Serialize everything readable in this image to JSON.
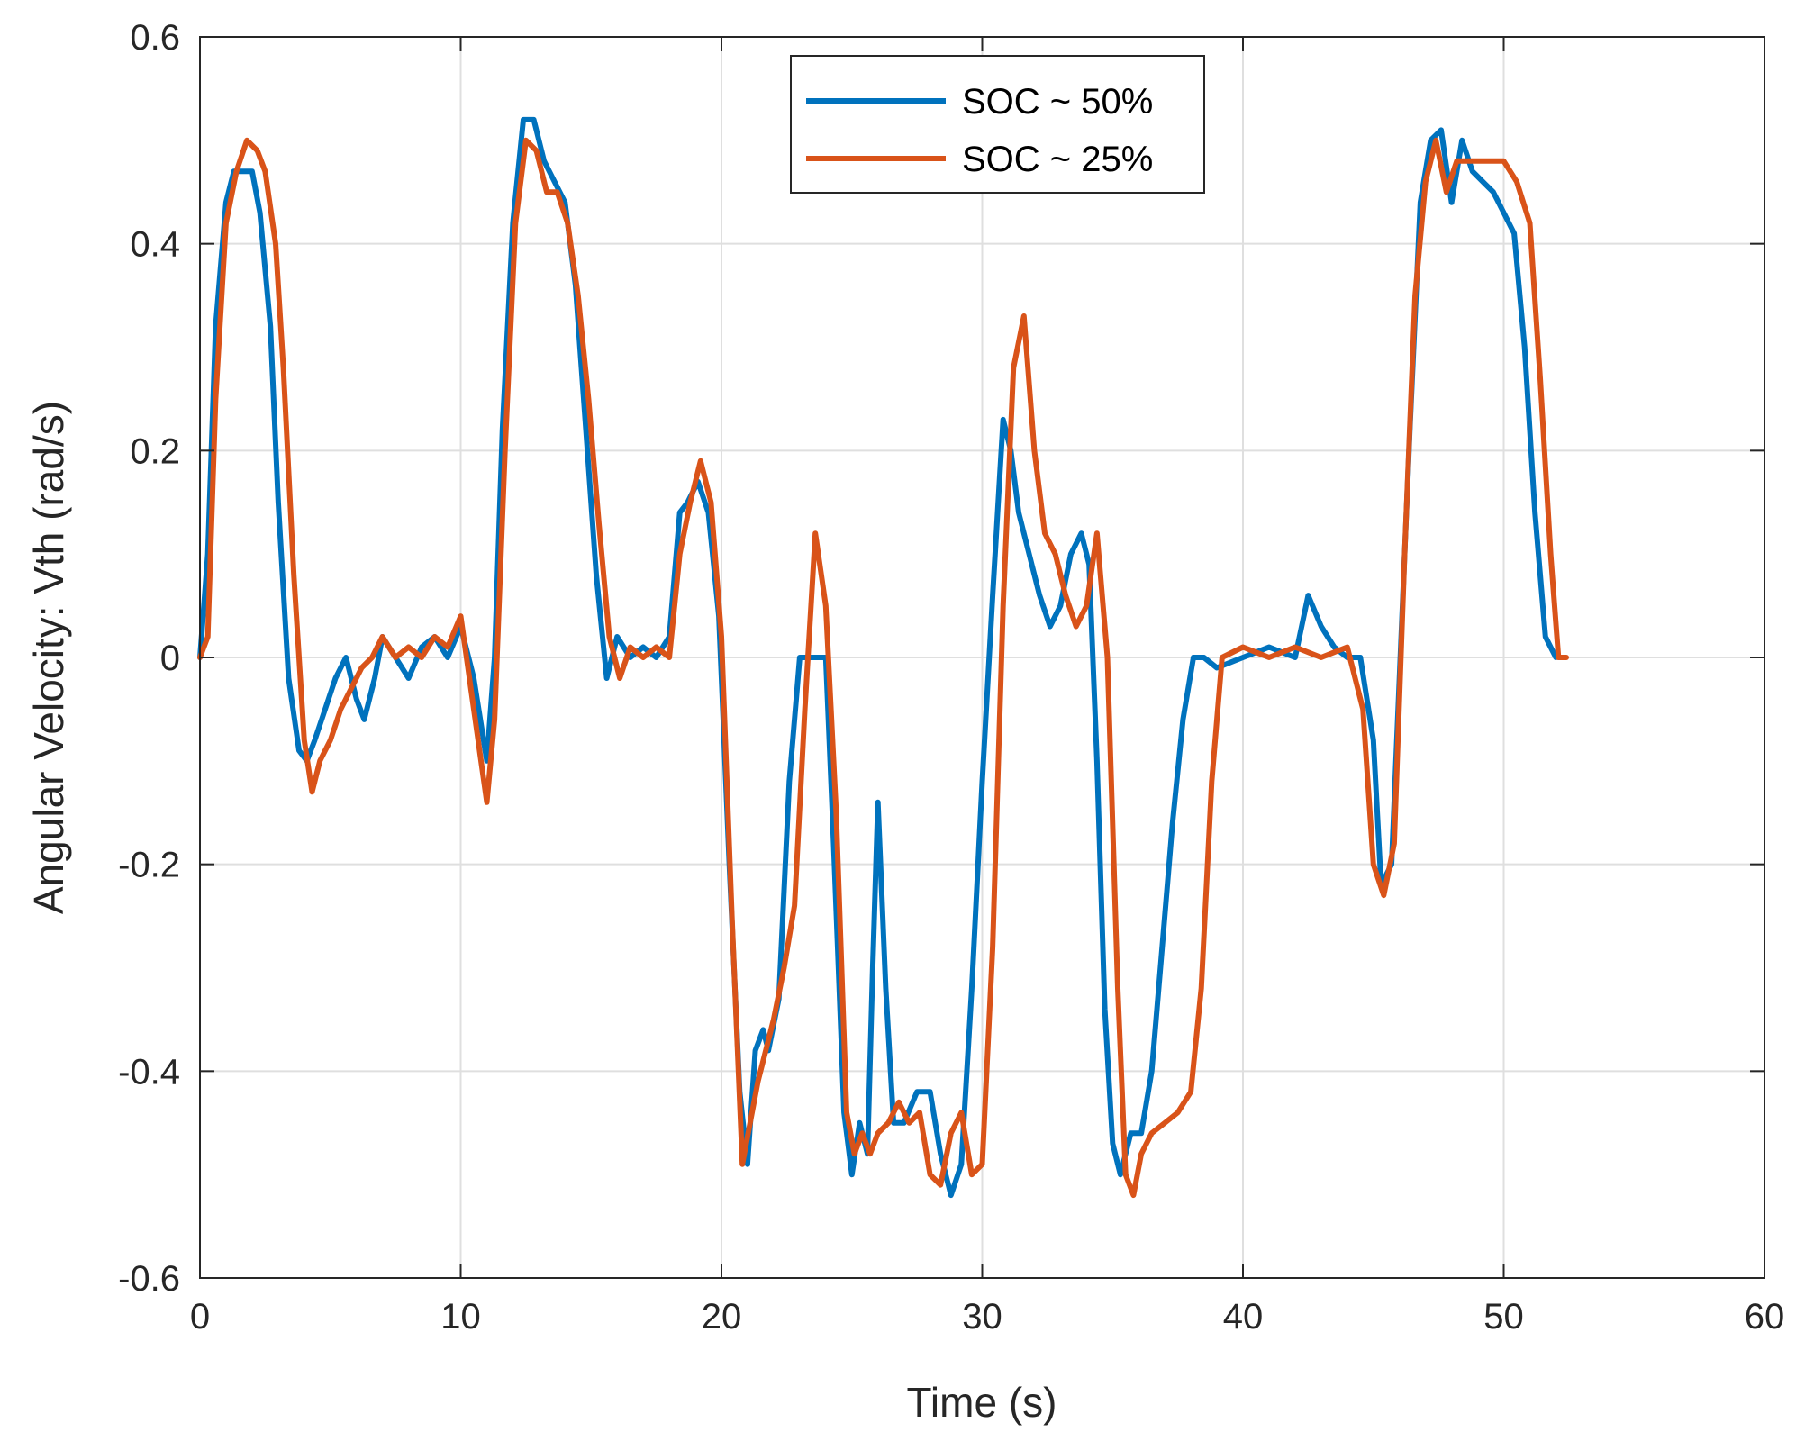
{
  "chart_data": {
    "type": "line",
    "title": "",
    "xlabel": "Time (s)",
    "ylabel": "Angular Velocity: Vth (rad/s)",
    "xlim": [
      0,
      60
    ],
    "ylim": [
      -0.6,
      0.6
    ],
    "xticks": [
      0,
      10,
      20,
      30,
      40,
      50,
      60
    ],
    "yticks": [
      -0.6,
      -0.4,
      -0.2,
      0,
      0.2,
      0.4,
      0.6
    ],
    "xtick_labels": [
      "0",
      "10",
      "20",
      "30",
      "40",
      "50",
      "60"
    ],
    "ytick_labels": [
      "-0.6",
      "-0.4",
      "-0.2",
      "0",
      "0.2",
      "0.4",
      "0.6"
    ],
    "grid": true,
    "legend_position": "top-center",
    "series": [
      {
        "name": "SOC ~ 50%",
        "color": "#0072BD",
        "x": [
          0,
          0.3,
          0.6,
          1.0,
          1.3,
          1.7,
          2.0,
          2.3,
          2.7,
          3.0,
          3.4,
          3.8,
          4.1,
          4.4,
          4.8,
          5.2,
          5.6,
          6.0,
          6.3,
          6.7,
          7.0,
          7.5,
          8.0,
          8.5,
          9.0,
          9.5,
          10.0,
          10.5,
          11.0,
          11.3,
          11.6,
          12.0,
          12.4,
          12.8,
          13.2,
          13.6,
          14.0,
          14.4,
          14.8,
          15.2,
          15.6,
          16.0,
          16.5,
          17.0,
          17.5,
          18.0,
          18.4,
          18.7,
          19.1,
          19.5,
          19.9,
          20.3,
          20.7,
          21.0,
          21.3,
          21.6,
          21.8,
          22.2,
          22.6,
          23.0,
          23.5,
          24.0,
          24.3,
          24.7,
          25.0,
          25.3,
          25.6,
          25.8,
          26.0,
          26.3,
          26.6,
          27.0,
          27.5,
          28.0,
          28.4,
          28.8,
          29.2,
          29.6,
          30.0,
          30.4,
          30.8,
          31.1,
          31.4,
          31.8,
          32.2,
          32.6,
          33.0,
          33.4,
          33.8,
          34.1,
          34.4,
          34.7,
          35.0,
          35.3,
          35.7,
          36.1,
          36.5,
          36.9,
          37.3,
          37.7,
          38.1,
          38.5,
          39.0,
          40.0,
          41.0,
          42.0,
          42.5,
          43.0,
          43.5,
          44.0,
          44.5,
          45.0,
          45.3,
          45.7,
          46.0,
          46.4,
          46.8,
          47.2,
          47.6,
          48.0,
          48.4,
          48.8,
          49.2,
          49.6,
          50.0,
          50.4,
          50.8,
          51.2,
          51.6,
          52.0
        ],
        "values": [
          0.0,
          0.1,
          0.32,
          0.44,
          0.47,
          0.47,
          0.47,
          0.43,
          0.32,
          0.15,
          -0.02,
          -0.09,
          -0.1,
          -0.08,
          -0.05,
          -0.02,
          0.0,
          -0.04,
          -0.06,
          -0.02,
          0.02,
          0.0,
          -0.02,
          0.01,
          0.02,
          0.0,
          0.03,
          -0.02,
          -0.1,
          0.0,
          0.22,
          0.42,
          0.52,
          0.52,
          0.48,
          0.46,
          0.44,
          0.36,
          0.22,
          0.08,
          -0.02,
          0.02,
          0.0,
          0.01,
          0.0,
          0.02,
          0.14,
          0.15,
          0.17,
          0.14,
          0.04,
          -0.2,
          -0.42,
          -0.49,
          -0.38,
          -0.36,
          -0.38,
          -0.33,
          -0.12,
          0.0,
          0.0,
          0.0,
          -0.18,
          -0.44,
          -0.5,
          -0.45,
          -0.48,
          -0.3,
          -0.14,
          -0.32,
          -0.45,
          -0.45,
          -0.42,
          -0.42,
          -0.48,
          -0.52,
          -0.49,
          -0.32,
          -0.12,
          0.06,
          0.23,
          0.2,
          0.14,
          0.1,
          0.06,
          0.03,
          0.05,
          0.1,
          0.12,
          0.09,
          -0.1,
          -0.34,
          -0.47,
          -0.5,
          -0.46,
          -0.46,
          -0.4,
          -0.28,
          -0.16,
          -0.06,
          0.0,
          0.0,
          -0.01,
          0.0,
          0.01,
          0.0,
          0.06,
          0.03,
          0.01,
          0.0,
          0.0,
          -0.08,
          -0.22,
          -0.2,
          -0.02,
          0.22,
          0.44,
          0.5,
          0.51,
          0.44,
          0.5,
          0.47,
          0.46,
          0.45,
          0.43,
          0.41,
          0.3,
          0.14,
          0.02,
          0.0
        ],
        "description_hidden": ""
      },
      {
        "name": "SOC ~ 25%",
        "color": "#D95319",
        "x": [
          0,
          0.3,
          0.6,
          1.0,
          1.4,
          1.8,
          2.2,
          2.5,
          2.9,
          3.2,
          3.6,
          4.0,
          4.3,
          4.6,
          5.0,
          5.4,
          5.8,
          6.2,
          6.6,
          7.0,
          7.5,
          8.0,
          8.5,
          9.0,
          9.5,
          10.0,
          10.5,
          11.0,
          11.3,
          11.7,
          12.1,
          12.5,
          12.9,
          13.3,
          13.7,
          14.1,
          14.5,
          14.9,
          15.3,
          15.7,
          16.1,
          16.5,
          17.0,
          17.5,
          18.0,
          18.4,
          18.8,
          19.2,
          19.6,
          20.0,
          20.4,
          20.8,
          21.1,
          21.4,
          21.7,
          22.0,
          22.4,
          22.8,
          23.2,
          23.6,
          24.0,
          24.4,
          24.8,
          25.1,
          25.4,
          25.7,
          26.0,
          26.4,
          26.8,
          27.2,
          27.6,
          28.0,
          28.4,
          28.8,
          29.2,
          29.6,
          30.0,
          30.4,
          30.8,
          31.2,
          31.6,
          32.0,
          32.4,
          32.8,
          33.2,
          33.6,
          34.0,
          34.4,
          34.8,
          35.2,
          35.5,
          35.8,
          36.1,
          36.5,
          37.0,
          37.5,
          38.0,
          38.4,
          38.8,
          39.2,
          40.0,
          41.0,
          42.0,
          43.0,
          44.0,
          44.6,
          45.0,
          45.4,
          45.8,
          46.2,
          46.6,
          47.0,
          47.4,
          47.8,
          48.2,
          48.6,
          49.0,
          49.5,
          50.0,
          50.5,
          51.0,
          51.4,
          51.8,
          52.1,
          52.4
        ],
        "values": [
          0.0,
          0.02,
          0.25,
          0.42,
          0.47,
          0.5,
          0.49,
          0.47,
          0.4,
          0.28,
          0.08,
          -0.08,
          -0.13,
          -0.1,
          -0.08,
          -0.05,
          -0.03,
          -0.01,
          0.0,
          0.02,
          0.0,
          0.01,
          0.0,
          0.02,
          0.01,
          0.04,
          -0.05,
          -0.14,
          -0.06,
          0.2,
          0.42,
          0.5,
          0.49,
          0.45,
          0.45,
          0.42,
          0.35,
          0.25,
          0.13,
          0.02,
          -0.02,
          0.01,
          0.0,
          0.01,
          0.0,
          0.1,
          0.15,
          0.19,
          0.15,
          0.02,
          -0.25,
          -0.49,
          -0.45,
          -0.41,
          -0.38,
          -0.35,
          -0.3,
          -0.24,
          -0.05,
          0.12,
          0.05,
          -0.15,
          -0.44,
          -0.48,
          -0.46,
          -0.48,
          -0.46,
          -0.45,
          -0.43,
          -0.45,
          -0.44,
          -0.5,
          -0.51,
          -0.46,
          -0.44,
          -0.5,
          -0.49,
          -0.28,
          0.05,
          0.28,
          0.33,
          0.2,
          0.12,
          0.1,
          0.06,
          0.03,
          0.05,
          0.12,
          0.0,
          -0.32,
          -0.5,
          -0.52,
          -0.48,
          -0.46,
          -0.45,
          -0.44,
          -0.42,
          -0.32,
          -0.12,
          0.0,
          0.01,
          0.0,
          0.01,
          0.0,
          0.01,
          -0.05,
          -0.2,
          -0.23,
          -0.18,
          0.1,
          0.35,
          0.46,
          0.5,
          0.45,
          0.48,
          0.48,
          0.48,
          0.48,
          0.48,
          0.46,
          0.42,
          0.27,
          0.1,
          0.0,
          0.0
        ],
        "description_hidden": ""
      }
    ]
  }
}
